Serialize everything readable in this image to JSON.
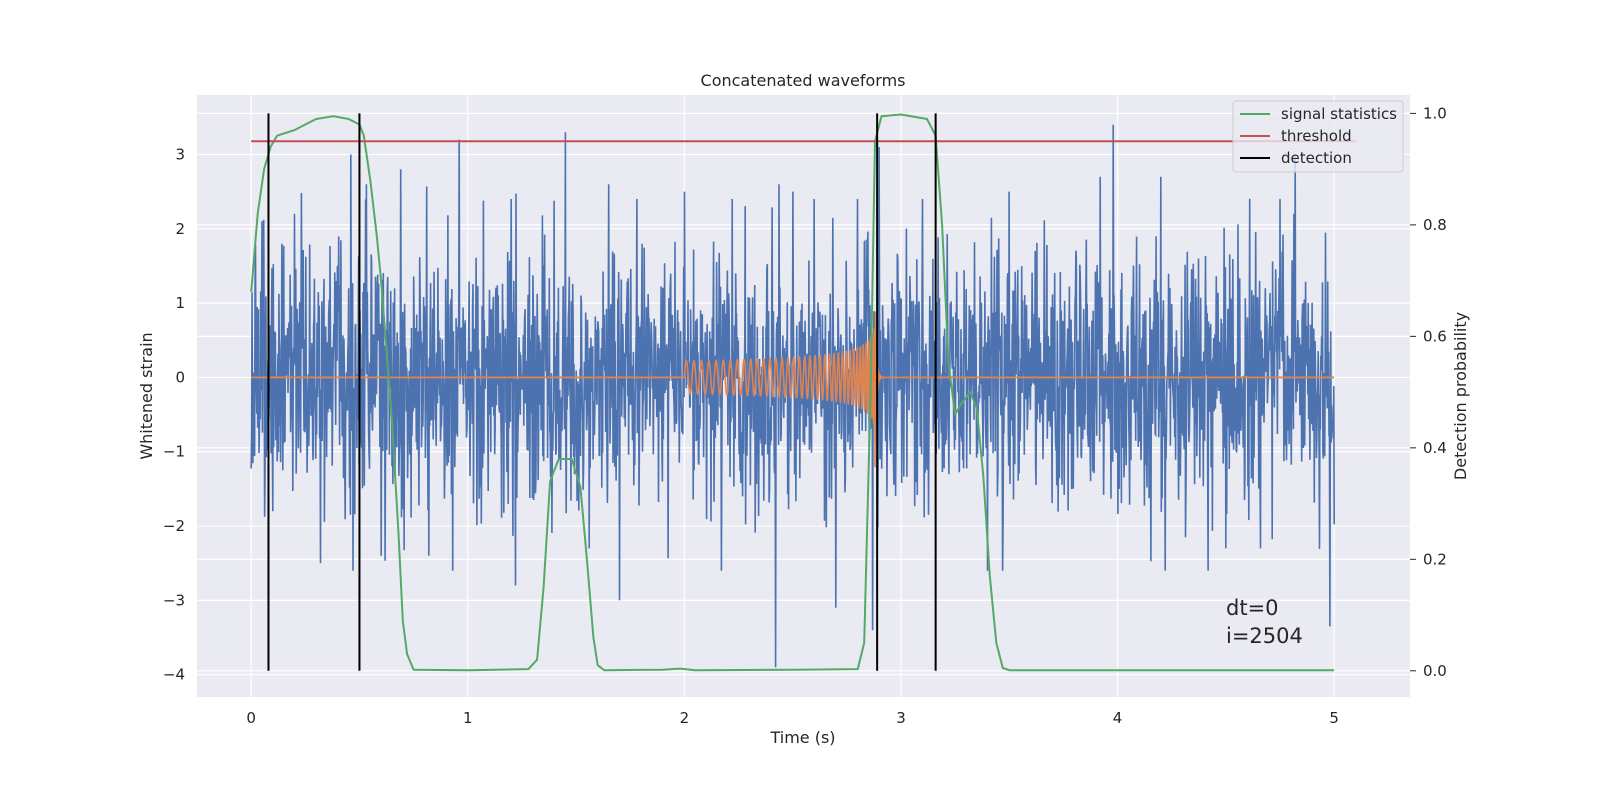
{
  "chart_data": {
    "type": "line",
    "title": "Concatenated waveforms",
    "xlabel": "Time (s)",
    "ylabel": "Whitened strain",
    "y2label": "Detection probability",
    "xlim": [
      -0.25,
      5.35
    ],
    "ylim": [
      -4.3,
      3.8
    ],
    "y2lim": [
      -0.047,
      1.033
    ],
    "xticks": [
      0,
      1,
      2,
      3,
      4,
      5
    ],
    "yticks": [
      -4,
      -3,
      -2,
      -1,
      0,
      1,
      2,
      3
    ],
    "y2ticks": [
      0.0,
      0.2,
      0.4,
      0.6,
      0.8,
      1.0
    ],
    "xtick_labels": [
      "0",
      "1",
      "2",
      "3",
      "4",
      "5"
    ],
    "ytick_labels": [
      "−4",
      "−3",
      "−2",
      "−1",
      "0",
      "1",
      "2",
      "3"
    ],
    "y2tick_labels": [
      "0.0",
      "0.2",
      "0.4",
      "0.6",
      "0.8",
      "1.0"
    ],
    "grid": true,
    "legend_position": "top-right",
    "colors": {
      "background": "#EAEAF2",
      "noise": "#4C72B0",
      "signal": "#DD8452",
      "statistics": "#55A868",
      "threshold": "#C44E52",
      "detection": "#000000"
    },
    "series": [
      {
        "name": "",
        "axis": "left",
        "kind": "noise",
        "x_range": [
          0,
          5
        ],
        "samples": 2500,
        "std": 0.85,
        "peaks": [
          {
            "x": 0.05,
            "y": 2.1
          },
          {
            "x": 0.1,
            "y": -1.8
          },
          {
            "x": 0.2,
            "y": 2.2
          },
          {
            "x": 0.32,
            "y": -2.5
          },
          {
            "x": 0.46,
            "y": 3.0
          },
          {
            "x": 0.47,
            "y": -2.6
          },
          {
            "x": 0.6,
            "y": -2.4
          },
          {
            "x": 0.69,
            "y": 2.8
          },
          {
            "x": 0.82,
            "y": -2.4
          },
          {
            "x": 0.93,
            "y": -2.6
          },
          {
            "x": 0.96,
            "y": 3.2
          },
          {
            "x": 1.2,
            "y": 2.4
          },
          {
            "x": 1.22,
            "y": -2.8
          },
          {
            "x": 1.45,
            "y": 3.3
          },
          {
            "x": 1.56,
            "y": -2.3
          },
          {
            "x": 1.65,
            "y": 2.6
          },
          {
            "x": 1.7,
            "y": -3.0
          },
          {
            "x": 1.78,
            "y": 2.4
          },
          {
            "x": 2.0,
            "y": 2.5
          },
          {
            "x": 2.22,
            "y": 2.4
          },
          {
            "x": 2.42,
            "y": -3.9
          },
          {
            "x": 2.5,
            "y": 2.5
          },
          {
            "x": 2.6,
            "y": 2.4
          },
          {
            "x": 2.7,
            "y": -3.1
          },
          {
            "x": 2.8,
            "y": 2.4
          },
          {
            "x": 2.87,
            "y": -3.4
          },
          {
            "x": 2.9,
            "y": 3.1
          },
          {
            "x": 3.1,
            "y": 2.4
          },
          {
            "x": 3.4,
            "y": -2.6
          },
          {
            "x": 3.5,
            "y": 2.5
          },
          {
            "x": 3.92,
            "y": 2.7
          },
          {
            "x": 3.98,
            "y": 3.4
          },
          {
            "x": 4.2,
            "y": 2.7
          },
          {
            "x": 4.22,
            "y": -2.6
          },
          {
            "x": 4.5,
            "y": -2.3
          },
          {
            "x": 4.66,
            "y": -2.3
          },
          {
            "x": 4.75,
            "y": 2.4
          },
          {
            "x": 4.82,
            "y": 3.0
          },
          {
            "x": 4.98,
            "y": -3.35
          }
        ]
      },
      {
        "name": "",
        "axis": "left",
        "kind": "chirp",
        "x_start": 2.0,
        "x_merger": 2.88,
        "x_end": 3.0,
        "amplitude_start": 0.22,
        "amplitude_peak": 1.25
      },
      {
        "name": "signal statistics",
        "axis": "right",
        "points": [
          [
            0.0,
            0.68
          ],
          [
            0.03,
            0.82
          ],
          [
            0.06,
            0.9
          ],
          [
            0.09,
            0.94
          ],
          [
            0.12,
            0.96
          ],
          [
            0.2,
            0.97
          ],
          [
            0.25,
            0.98
          ],
          [
            0.3,
            0.99
          ],
          [
            0.38,
            0.995
          ],
          [
            0.45,
            0.99
          ],
          [
            0.5,
            0.98
          ],
          [
            0.52,
            0.96
          ],
          [
            0.55,
            0.88
          ],
          [
            0.58,
            0.78
          ],
          [
            0.6,
            0.7
          ],
          [
            0.62,
            0.6
          ],
          [
            0.65,
            0.45
          ],
          [
            0.68,
            0.25
          ],
          [
            0.7,
            0.09
          ],
          [
            0.72,
            0.03
          ],
          [
            0.75,
            0.002
          ],
          [
            1.0,
            0.001
          ],
          [
            1.28,
            0.003
          ],
          [
            1.32,
            0.02
          ],
          [
            1.35,
            0.15
          ],
          [
            1.38,
            0.34
          ],
          [
            1.42,
            0.38
          ],
          [
            1.48,
            0.38
          ],
          [
            1.52,
            0.33
          ],
          [
            1.55,
            0.2
          ],
          [
            1.58,
            0.06
          ],
          [
            1.6,
            0.01
          ],
          [
            1.63,
            0.001
          ],
          [
            1.9,
            0.002
          ],
          [
            1.98,
            0.004
          ],
          [
            2.05,
            0.001
          ],
          [
            2.5,
            0.002
          ],
          [
            2.8,
            0.003
          ],
          [
            2.83,
            0.05
          ],
          [
            2.86,
            0.5
          ],
          [
            2.88,
            0.95
          ],
          [
            2.91,
            0.995
          ],
          [
            3.0,
            0.998
          ],
          [
            3.12,
            0.99
          ],
          [
            3.16,
            0.96
          ],
          [
            3.19,
            0.8
          ],
          [
            3.22,
            0.55
          ],
          [
            3.25,
            0.46
          ],
          [
            3.28,
            0.48
          ],
          [
            3.32,
            0.5
          ],
          [
            3.35,
            0.47
          ],
          [
            3.38,
            0.35
          ],
          [
            3.41,
            0.17
          ],
          [
            3.44,
            0.05
          ],
          [
            3.47,
            0.005
          ],
          [
            3.5,
            0.001
          ],
          [
            5.0,
            0.001
          ]
        ]
      },
      {
        "name": "threshold",
        "axis": "right",
        "x_range": [
          0,
          5.1
        ],
        "value": 0.95
      },
      {
        "name": "detection",
        "axis": "right",
        "x_positions": [
          0.08,
          0.5,
          2.89,
          3.16
        ],
        "y_range": [
          0.0,
          1.0
        ]
      }
    ],
    "annotations": [
      "dt=0",
      "i=2504"
    ]
  }
}
